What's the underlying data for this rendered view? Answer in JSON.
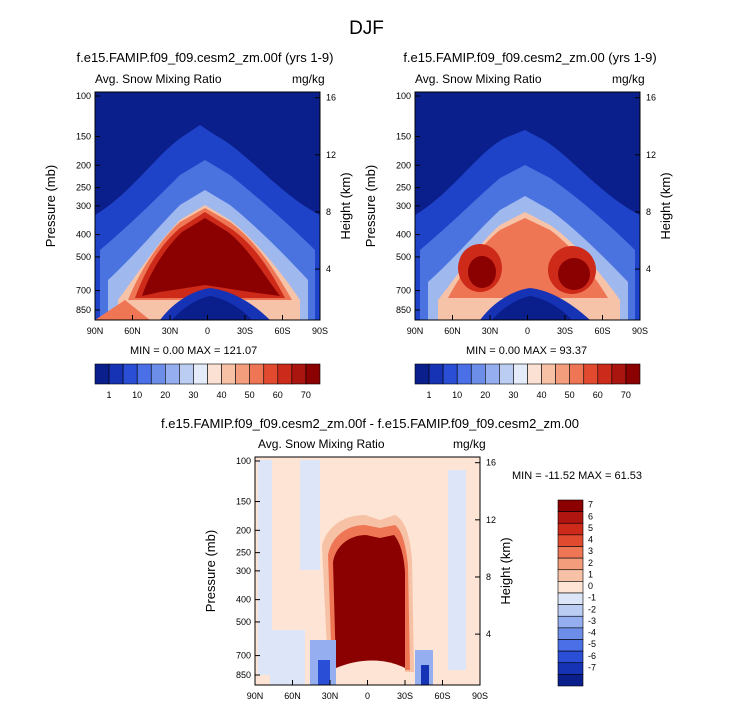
{
  "title": "DJF",
  "colors": {
    "plot_base": "#0a1f8c",
    "warm_core": "#8b0000",
    "diff_base": "#fde4d4"
  },
  "chart_data": [
    {
      "id": "panel-1",
      "type": "contour",
      "title": "f.e15.FAMIP.f09_f09.cesm2_zm.00f (yrs 1-9)",
      "left_subtitle": "Avg. Snow Mixing Ratio",
      "right_subtitle": "mg/kg",
      "ylabel": "Pressure (mb)",
      "y2label": "Height (km)",
      "xticks": [
        "90N",
        "60N",
        "30N",
        "0",
        "30S",
        "60S",
        "90S"
      ],
      "yticks": [
        "100",
        "150",
        "200",
        "250",
        "300",
        "400",
        "500",
        "700",
        "850"
      ],
      "y2ticks": [
        "16",
        "12",
        "8",
        "4"
      ],
      "stats": "MIN =  0.00  MAX = 121.07",
      "min": 0.0,
      "max": 121.07
    },
    {
      "id": "panel-2",
      "type": "contour",
      "title": "f.e15.FAMIP.f09_f09.cesm2_zm.00 (yrs 1-9)",
      "left_subtitle": "Avg. Snow Mixing Ratio",
      "right_subtitle": "mg/kg",
      "ylabel": "Pressure (mb)",
      "y2label": "Height (km)",
      "xticks": [
        "90N",
        "60N",
        "30N",
        "0",
        "30S",
        "60S",
        "90S"
      ],
      "yticks": [
        "100",
        "150",
        "200",
        "250",
        "300",
        "400",
        "500",
        "700",
        "850"
      ],
      "y2ticks": [
        "16",
        "12",
        "8",
        "4"
      ],
      "stats": "MIN =  0.00  MAX = 93.37",
      "min": 0.0,
      "max": 93.37
    },
    {
      "id": "panel-diff",
      "type": "contour",
      "title": "f.e15.FAMIP.f09_f09.cesm2_zm.00f - f.e15.FAMIP.f09_f09.cesm2_zm.00",
      "left_subtitle": "Avg. Snow Mixing Ratio",
      "right_subtitle": "mg/kg",
      "ylabel": "Pressure (mb)",
      "y2label": "Height (km)",
      "xticks": [
        "90N",
        "60N",
        "30N",
        "0",
        "30S",
        "60S",
        "90S"
      ],
      "yticks": [
        "100",
        "150",
        "200",
        "250",
        "300",
        "400",
        "500",
        "700",
        "850"
      ],
      "y2ticks": [
        "16",
        "12",
        "8",
        "4"
      ],
      "stats": "MIN = -11.52  MAX =  61.53",
      "min": -11.52,
      "max": 61.53
    }
  ],
  "colorbar_main": {
    "labels": [
      "1",
      "10",
      "20",
      "30",
      "40",
      "50",
      "60",
      "70"
    ],
    "colors": [
      "#0a1f8c",
      "#1633b5",
      "#2a4fd6",
      "#4a6fe6",
      "#6d8ee8",
      "#94aef0",
      "#bccdf4",
      "#e4ecfa",
      "#fbe1d3",
      "#f7c1a6",
      "#f39d7c",
      "#ee7655",
      "#e24a30",
      "#cc2a1a",
      "#aa1510",
      "#8b0000"
    ]
  },
  "colorbar_diff": {
    "labels": [
      "7",
      "6",
      "5",
      "4",
      "3",
      "2",
      "1",
      "0",
      "-1",
      "-2",
      "-3",
      "-4",
      "-5",
      "-6",
      "-7"
    ],
    "colors": [
      "#8b0000",
      "#b11510",
      "#cd2a1a",
      "#e24a30",
      "#ee7655",
      "#f39d7c",
      "#f7c1a6",
      "#fde4d4",
      "#dce6f8",
      "#bccdf4",
      "#94aef0",
      "#6d8ee8",
      "#4a6fe6",
      "#2a4fd6",
      "#1633b5",
      "#0a1f8c"
    ]
  }
}
